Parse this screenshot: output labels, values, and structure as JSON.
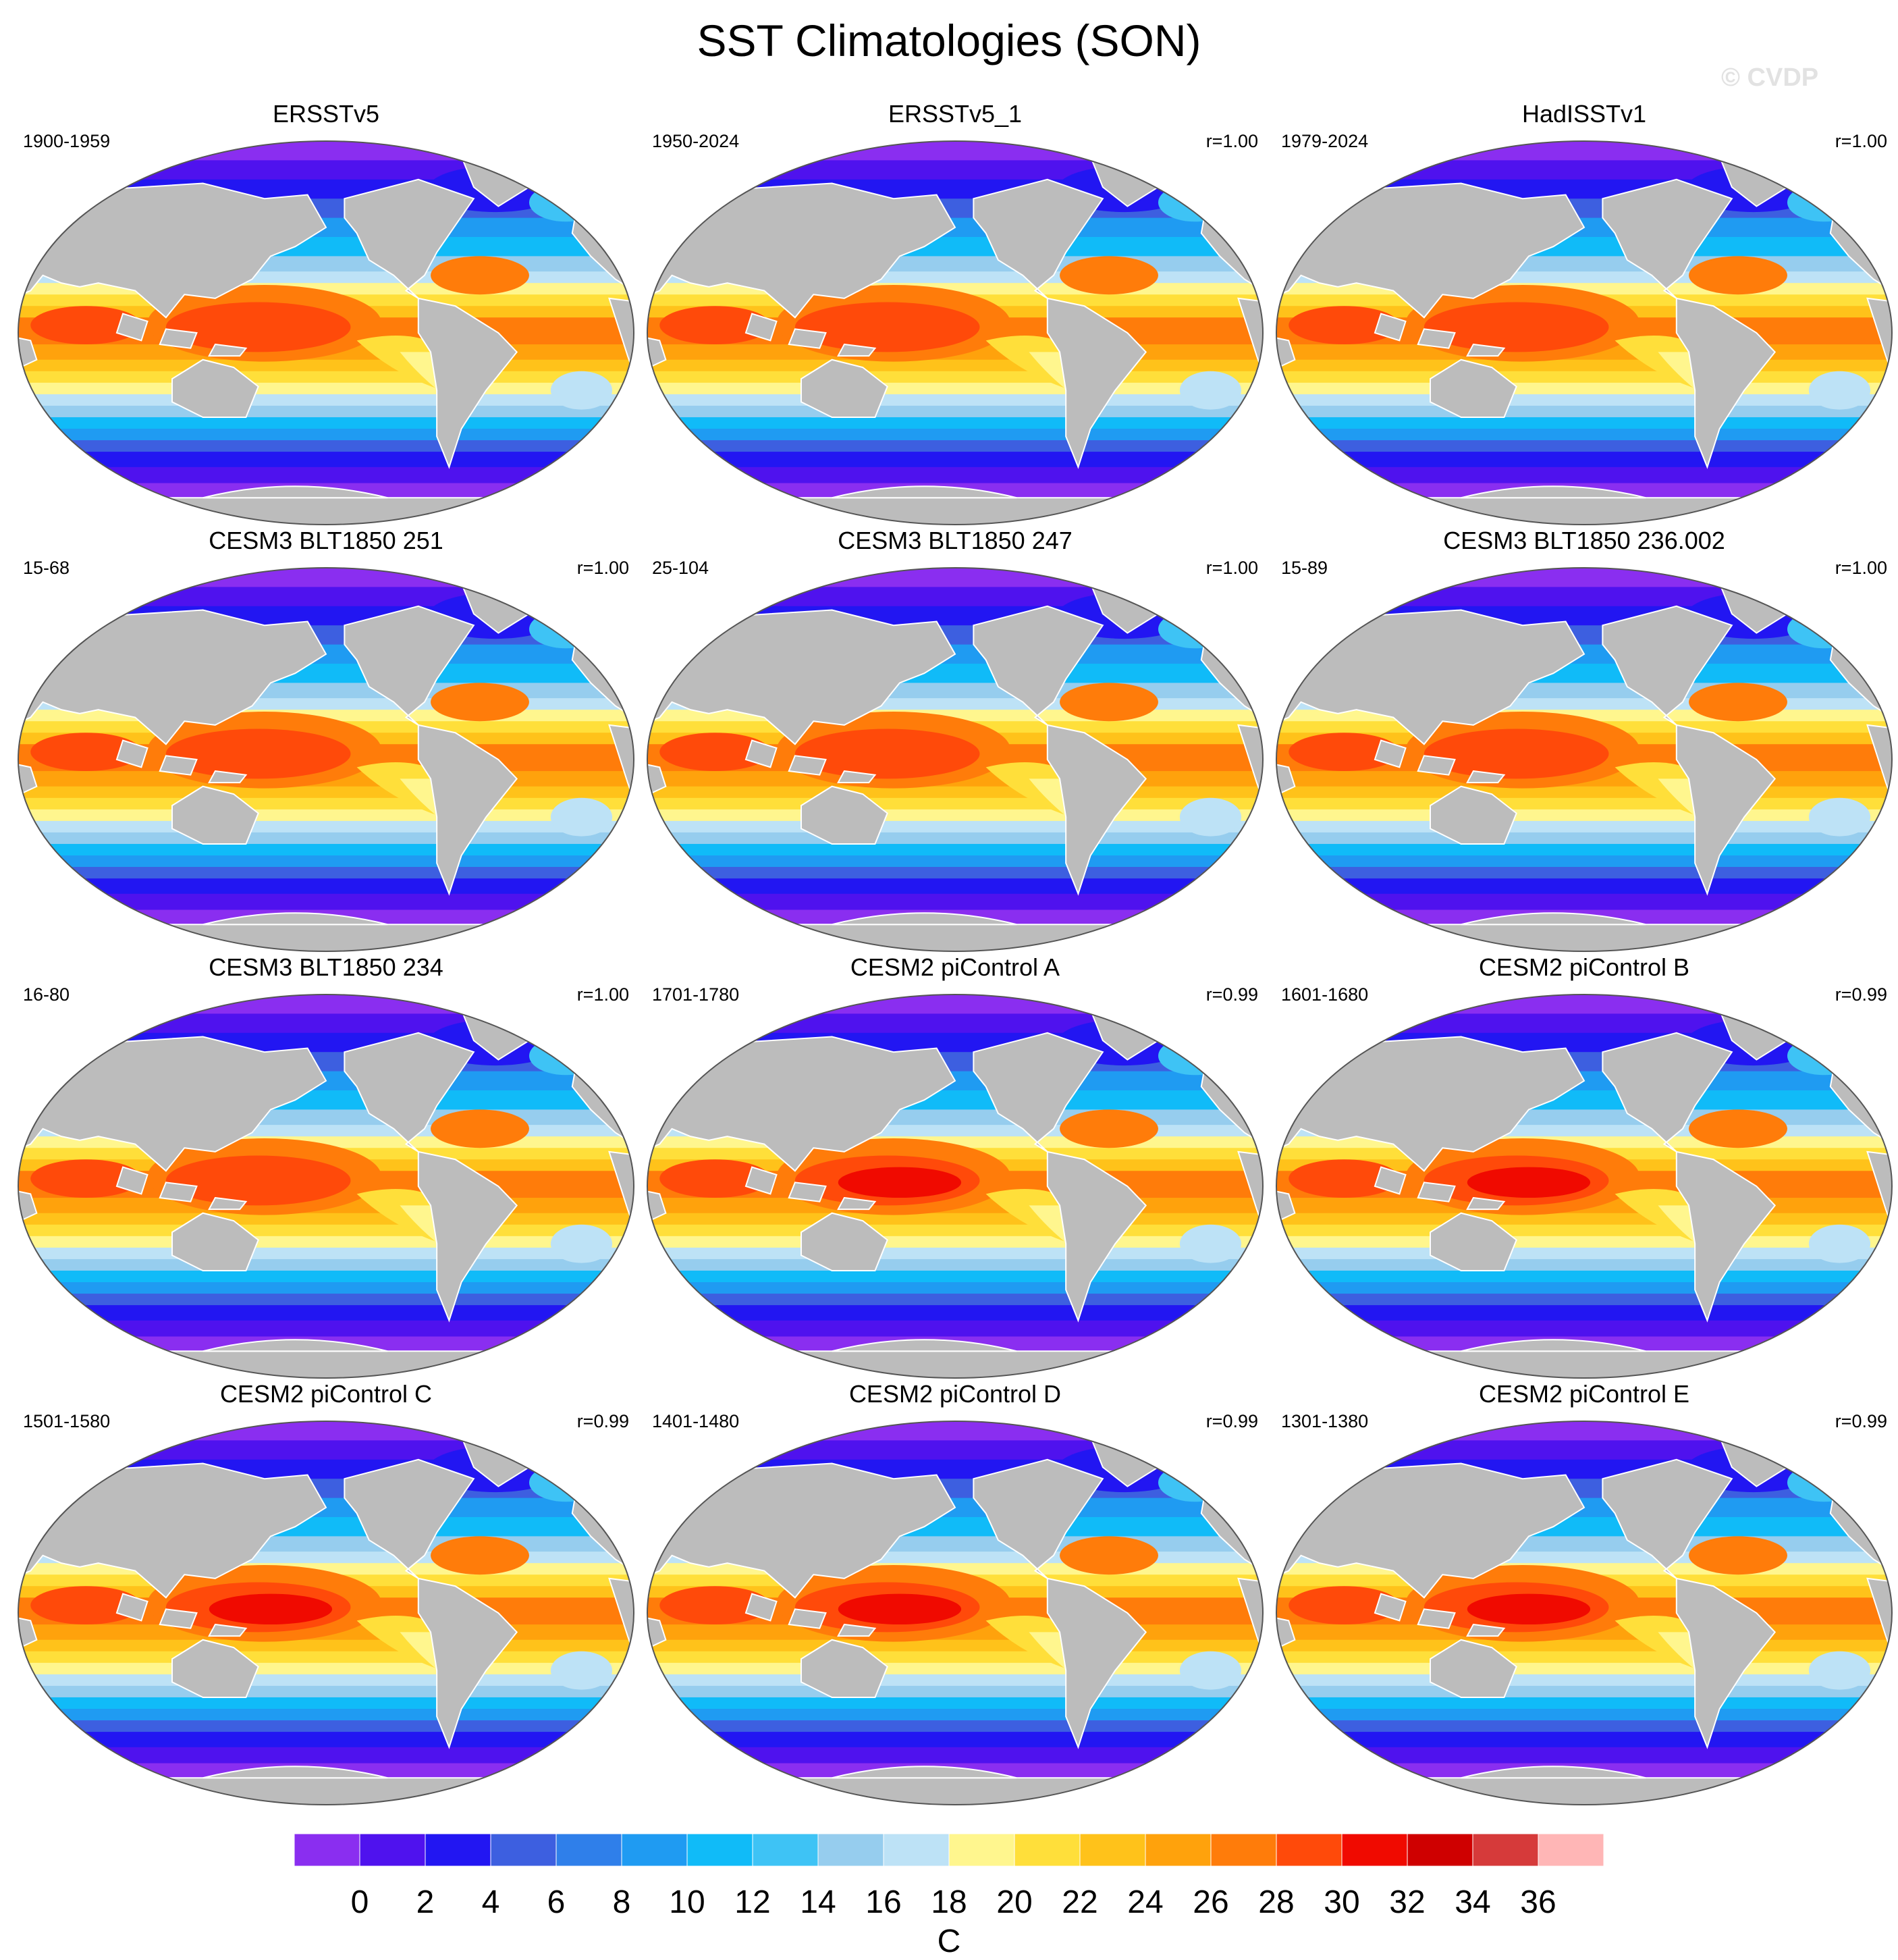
{
  "title": "SST Climatologies (SON)",
  "watermark": "© CVDP",
  "colors": {
    "land": "#bcbcbc",
    "levels": [
      "#8a2ef0",
      "#4f12ee",
      "#2216f2",
      "#3d5fe0",
      "#2f7fea",
      "#1f9bf2",
      "#10bbf8",
      "#3ec3f5",
      "#96cdee",
      "#bde2f6",
      "#fff68e",
      "#ffdf3a",
      "#ffc21a",
      "#ffa20c",
      "#ff7c0a",
      "#ff4a0a",
      "#f00a00",
      "#cf0000",
      "#d63a3a",
      "#ffb6b6"
    ]
  },
  "panels": [
    {
      "title": "ERSSTv5",
      "period": "1900-1959",
      "corr": "",
      "variant": "obs"
    },
    {
      "title": "ERSSTv5_1",
      "period": "1950-2024",
      "corr": "r=1.00",
      "variant": "obs"
    },
    {
      "title": "HadISSTv1",
      "period": "1979-2024",
      "corr": "r=1.00",
      "variant": "obs"
    },
    {
      "title": "CESM3 BLT1850 251",
      "period": "15-68",
      "corr": "r=1.00",
      "variant": "cesm3"
    },
    {
      "title": "CESM3 BLT1850 247",
      "period": "25-104",
      "corr": "r=1.00",
      "variant": "cesm3"
    },
    {
      "title": "CESM3 BLT1850 236.002",
      "period": "15-89",
      "corr": "r=1.00",
      "variant": "cesm3"
    },
    {
      "title": "CESM3 BLT1850 234",
      "period": "16-80",
      "corr": "r=1.00",
      "variant": "cesm3"
    },
    {
      "title": "CESM2 piControl A",
      "period": "1701-1780",
      "corr": "r=0.99",
      "variant": "cesm2"
    },
    {
      "title": "CESM2 piControl B",
      "period": "1601-1680",
      "corr": "r=0.99",
      "variant": "cesm2"
    },
    {
      "title": "CESM2 piControl C",
      "period": "1501-1580",
      "corr": "r=0.99",
      "variant": "cesm2"
    },
    {
      "title": "CESM2 piControl D",
      "period": "1401-1480",
      "corr": "r=0.99",
      "variant": "cesm2"
    },
    {
      "title": "CESM2 piControl E",
      "period": "1301-1380",
      "corr": "r=0.99",
      "variant": "cesm2"
    }
  ],
  "colorbar": {
    "labels": [
      "0",
      "2",
      "4",
      "6",
      "8",
      "10",
      "12",
      "14",
      "16",
      "18",
      "20",
      "22",
      "24",
      "26",
      "28",
      "30",
      "32",
      "34",
      "36"
    ],
    "units": "C"
  }
}
